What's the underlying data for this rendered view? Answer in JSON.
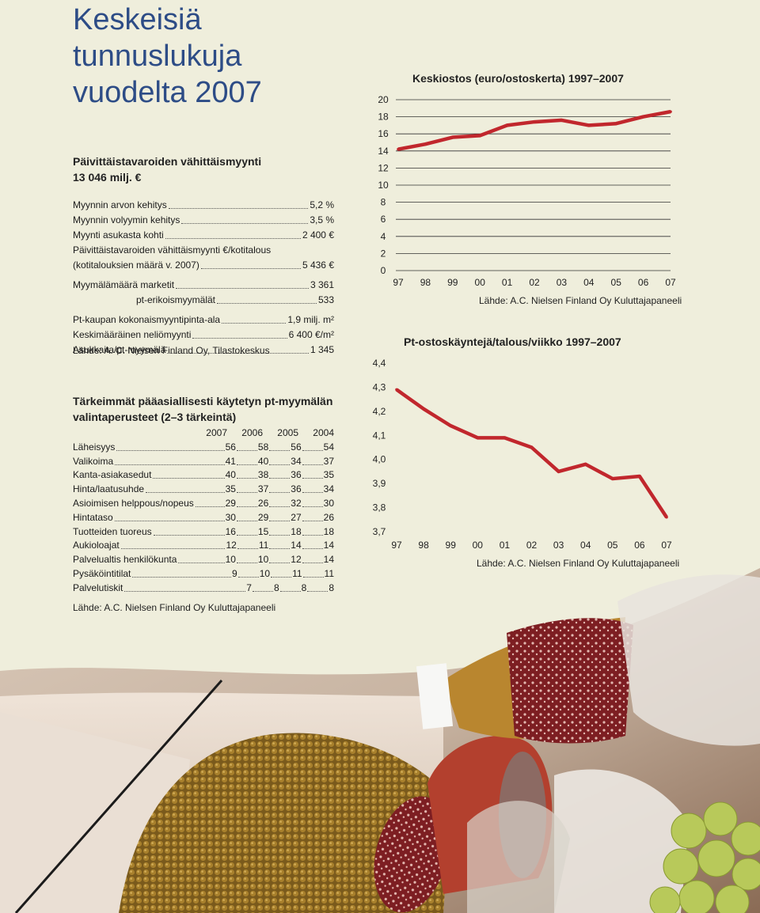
{
  "title_lines": [
    "Keskeisiä",
    "tunnuslukuja",
    "vuodelta 2007"
  ],
  "sales": {
    "heading_lines": [
      "Päivittäistavaroiden vähittäismyynti",
      "13 046 milj. €"
    ],
    "stats": [
      {
        "label": "Myynnin arvon kehitys",
        "value": "5,2 %"
      },
      {
        "label": "Myynnin volyymin kehitys",
        "value": "3,5 %"
      },
      {
        "label": "Myynti asukasta kohti",
        "value": "2 400 €"
      },
      {
        "label": "Päivittäistavaroiden vähittäismyynti €/kotitalous",
        "value": ""
      },
      {
        "label": "(kotitalouksien määrä v. 2007)",
        "value": "5 436 €"
      },
      {
        "label": "Myymälämäärä marketit",
        "value": "3 361"
      },
      {
        "label": "pt-erikoismyymälät",
        "value": "533"
      },
      {
        "label": "Pt-kaupan kokonaismyyntipinta-ala",
        "value": "1,9 milj. m²"
      },
      {
        "label": "Keskimääräinen neliömyynti",
        "value": "6 400 €/m²"
      },
      {
        "label": "Asukkaita/pt-myymälä",
        "value": "1 345"
      }
    ],
    "source": "Lähde: A. C. Nielsen Finland Oy, Tilastokeskus"
  },
  "criteria": {
    "title_lines": [
      "Tärkeimmät pääasiallisesti käytetyn pt-myymälän",
      "valintaperusteet (2–3 tärkeintä)"
    ],
    "years": [
      "2007",
      "2006",
      "2005",
      "2004"
    ],
    "rows": [
      {
        "label": "Läheisyys",
        "values": [
          "56",
          "58",
          "56",
          "54"
        ]
      },
      {
        "label": "Valikoima",
        "values": [
          "41",
          "40",
          "34",
          "37"
        ]
      },
      {
        "label": "Kanta-asiakasedut",
        "values": [
          "40",
          "38",
          "36",
          "35"
        ]
      },
      {
        "label": "Hinta/laatusuhde",
        "values": [
          "35",
          "37",
          "36",
          "34"
        ]
      },
      {
        "label": "Asioimisen helppous/nopeus",
        "values": [
          "29",
          "26",
          "32",
          "30"
        ]
      },
      {
        "label": "Hintataso",
        "values": [
          "30",
          "29",
          "27",
          "26"
        ]
      },
      {
        "label": "Tuotteiden tuoreus",
        "values": [
          "16",
          "15",
          "18",
          "18"
        ]
      },
      {
        "label": "Aukioloajat",
        "values": [
          "12",
          "11",
          "14",
          "14"
        ]
      },
      {
        "label": "Palvelualtis henkilökunta",
        "values": [
          "10",
          "10",
          "12",
          "14"
        ]
      },
      {
        "label": "Pysäköintitilat",
        "values": [
          "9",
          "10",
          "11",
          "11"
        ]
      },
      {
        "label": "Palvelutiskit",
        "values": [
          "7",
          "8",
          "8",
          "8"
        ]
      }
    ],
    "source": "Lähde: A.C. Nielsen Finland Oy Kuluttajapaneeli"
  },
  "chart_data": [
    {
      "type": "line",
      "title": "Keskiostos (euro/ostoskerta)  1997–2007",
      "categories": [
        "97",
        "98",
        "99",
        "00",
        "01",
        "02",
        "03",
        "04",
        "05",
        "06",
        "07"
      ],
      "values": [
        14.2,
        14.8,
        15.6,
        15.8,
        17.0,
        17.4,
        17.6,
        17.0,
        17.2,
        18.0,
        18.6
      ],
      "ylim": [
        0,
        20
      ],
      "yticks": [
        "0",
        "2",
        "4",
        "6",
        "8",
        "10",
        "12",
        "14",
        "16",
        "18",
        "20"
      ],
      "grid": true,
      "source": "Lähde: A.C. Nielsen Finland Oy Kuluttajapaneeli",
      "line_color": "#c1272d"
    },
    {
      "type": "line",
      "title": "Pt-ostoskäyntejä/talous/viikko  1997–2007",
      "categories": [
        "97",
        "98",
        "99",
        "00",
        "01",
        "02",
        "03",
        "04",
        "05",
        "06",
        "07"
      ],
      "values": [
        4.29,
        4.21,
        4.14,
        4.09,
        4.09,
        4.05,
        3.95,
        3.98,
        3.92,
        3.93,
        3.76
      ],
      "ylim": [
        3.7,
        4.4
      ],
      "yticks": [
        "3,7",
        "3,8",
        "3,9",
        "4,0",
        "4,1",
        "4,2",
        "4,3",
        "4,4"
      ],
      "grid": false,
      "source": "Lähde: A.C. Nielsen Finland Oy Kuluttajapaneeli",
      "line_color": "#c1272d"
    }
  ]
}
